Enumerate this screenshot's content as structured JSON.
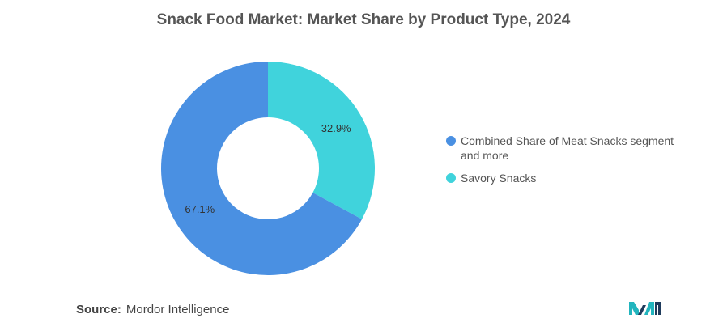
{
  "chart_data": {
    "type": "pie",
    "title": "Snack Food Market: Market Share by Product Type, 2024",
    "series": [
      {
        "name": "Combined Share of Meat Snacks segment and more",
        "value": 67.1,
        "label": "67.1%",
        "color": "#4A90E2"
      },
      {
        "name": "Savory Snacks",
        "value": 32.9,
        "label": "32.9%",
        "color": "#40D3DC"
      }
    ],
    "legend_position": "right"
  },
  "source": {
    "label": "Source:",
    "value": "Mordor Intelligence"
  },
  "logo": {
    "icon": "mordor-intelligence-logo-icon",
    "colors": [
      "#1F3B5C",
      "#22B5BE"
    ]
  }
}
